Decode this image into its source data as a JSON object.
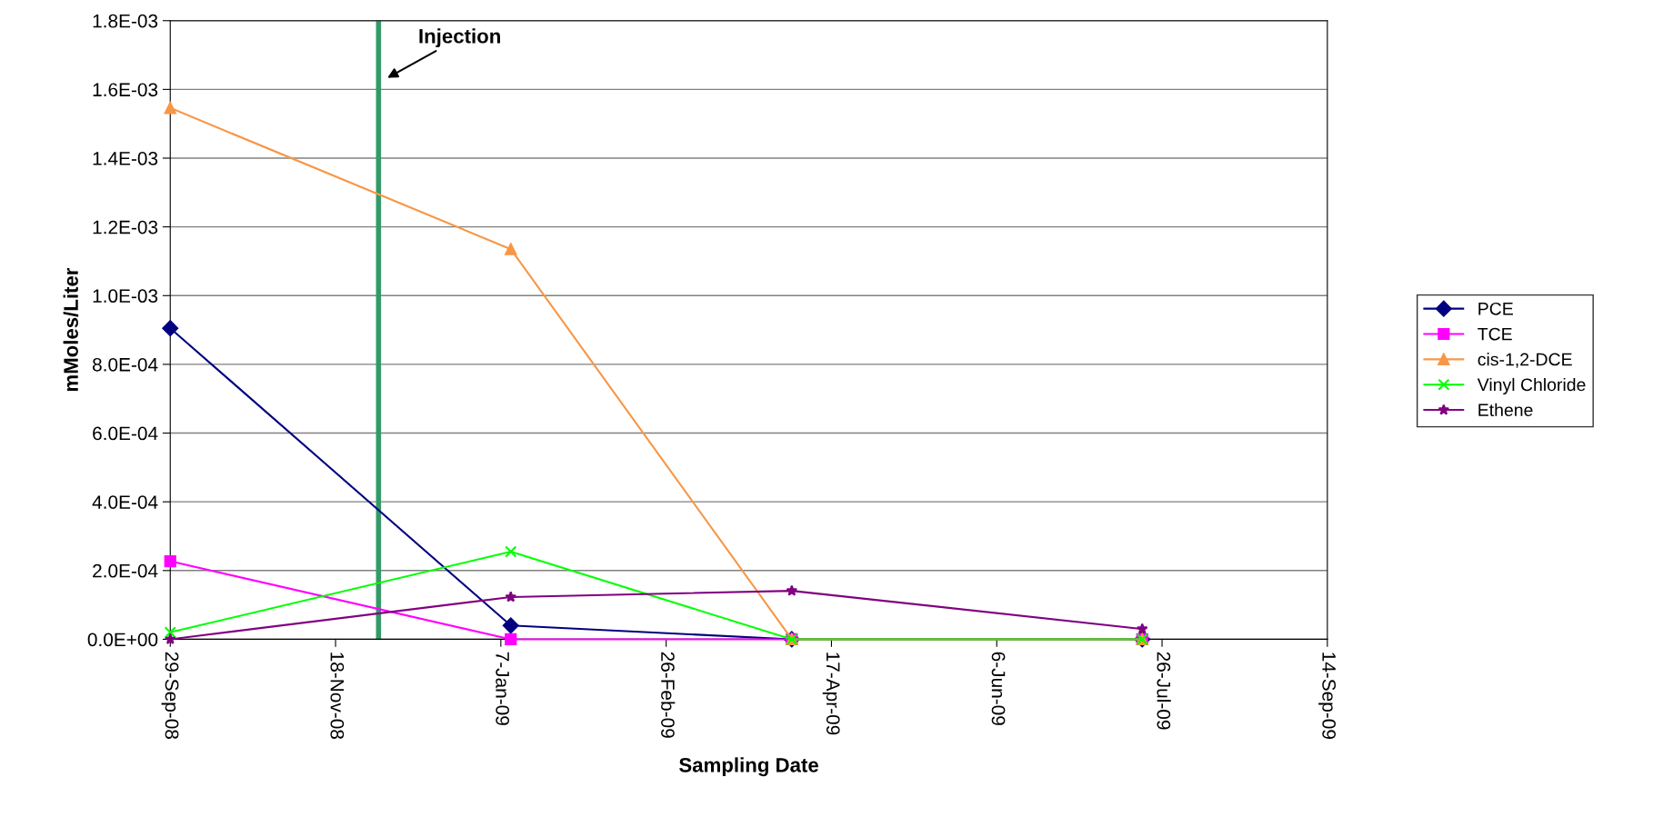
{
  "chart_data": {
    "type": "line",
    "xlabel": "Sampling Date",
    "ylabel": "mMoles/Liter",
    "x": [
      "2008-09-29",
      "2009-01-10",
      "2009-04-05",
      "2009-07-20"
    ],
    "series": [
      {
        "name": "PCE",
        "color": "#000080",
        "marker": "diamond",
        "values": [
          0.000905,
          4e-05,
          0,
          0
        ]
      },
      {
        "name": "TCE",
        "color": "#ff00ff",
        "marker": "square",
        "values": [
          0.000227,
          0,
          0,
          0
        ]
      },
      {
        "name": "cis-1,2-DCE",
        "color": "#f79646",
        "marker": "triangle",
        "values": [
          0.001546,
          0.001135,
          0,
          0
        ]
      },
      {
        "name": "Vinyl Chloride",
        "color": "#00ff00",
        "marker": "cross",
        "values": [
          2e-05,
          0.000255,
          0,
          0
        ]
      },
      {
        "name": "Ethene",
        "color": "#800080",
        "marker": "star",
        "values": [
          0,
          0.000123,
          0.000141,
          3e-05
        ]
      }
    ],
    "xlim": [
      "2008-09-29",
      "2009-09-14"
    ],
    "xticks": [
      {
        "value": "2008-09-29",
        "label": "29-Sep-08"
      },
      {
        "value": "2008-11-18",
        "label": "18-Nov-08"
      },
      {
        "value": "2009-01-07",
        "label": "7-Jan-09"
      },
      {
        "value": "2009-02-26",
        "label": "26-Feb-09"
      },
      {
        "value": "2009-04-17",
        "label": "17-Apr-09"
      },
      {
        "value": "2009-06-06",
        "label": "6-Jun-09"
      },
      {
        "value": "2009-07-26",
        "label": "26-Jul-09"
      },
      {
        "value": "2009-09-14",
        "label": "14-Sep-09"
      }
    ],
    "ylim": [
      0,
      0.0018
    ],
    "yticks": [
      {
        "value": 0,
        "label": "0.0E+00"
      },
      {
        "value": 0.0002,
        "label": "2.0E-04"
      },
      {
        "value": 0.0004,
        "label": "4.0E-04"
      },
      {
        "value": 0.0006,
        "label": "6.0E-04"
      },
      {
        "value": 0.0008,
        "label": "8.0E-04"
      },
      {
        "value": 0.001,
        "label": "1.0E-03"
      },
      {
        "value": 0.0012,
        "label": "1.2E-03"
      },
      {
        "value": 0.0014,
        "label": "1.4E-03"
      },
      {
        "value": 0.0016,
        "label": "1.6E-03"
      },
      {
        "value": 0.0018,
        "label": "1.8E-03"
      }
    ],
    "ref_lines": [
      {
        "axis": "x",
        "value": "2008-12-01",
        "label": "Injection",
        "color": "#339966"
      }
    ],
    "grid": "y",
    "legend": "right",
    "line_style": "solid"
  }
}
